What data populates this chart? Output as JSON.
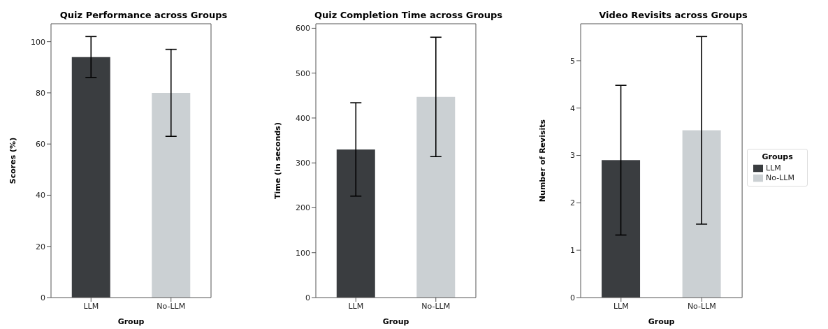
{
  "chart_data": [
    {
      "type": "bar",
      "title": "Quiz Performance across Groups",
      "xlabel": "Group",
      "ylabel": "Scores (%)",
      "categories": [
        "LLM",
        "No-LLM"
      ],
      "values": [
        94,
        80
      ],
      "colors": [
        "#3a3d40",
        "#cbd0d3"
      ],
      "errors": [
        8,
        17
      ],
      "ylim": [
        0,
        107
      ],
      "yticks": [
        0,
        20,
        40,
        60,
        80,
        100
      ]
    },
    {
      "type": "bar",
      "title": "Quiz Completion Time across Groups",
      "xlabel": "Group",
      "ylabel": "Time (in seconds)",
      "categories": [
        "LLM",
        "No-LLM"
      ],
      "values": [
        330,
        447
      ],
      "colors": [
        "#3a3d40",
        "#cbd0d3"
      ],
      "errors": [
        104,
        133
      ],
      "ylim": [
        0,
        610
      ],
      "yticks": [
        0,
        100,
        200,
        300,
        400,
        500,
        600
      ]
    },
    {
      "type": "bar",
      "title": "Video Revisits across Groups",
      "xlabel": "Group",
      "ylabel": "Number of Revisits",
      "categories": [
        "LLM",
        "No-LLM"
      ],
      "series": [
        {
          "name": "LLM",
          "color": "#3a3d40",
          "values": [
            2.9,
            null
          ],
          "errors": [
            1.58,
            null
          ]
        },
        {
          "name": "No-LLM",
          "color": "#cbd0d3",
          "values": [
            null,
            3.53
          ],
          "errors": [
            null,
            1.98
          ]
        }
      ],
      "ylim": [
        0,
        5.78
      ],
      "yticks": [
        0,
        1,
        2,
        3,
        4,
        5
      ],
      "legend": "right",
      "legend_title": "Groups"
    }
  ]
}
